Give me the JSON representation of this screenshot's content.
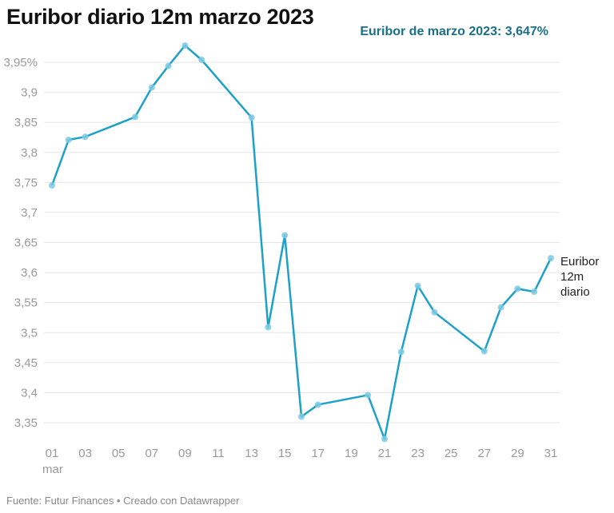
{
  "header": {
    "title": "Euribor diario 12m marzo 2023",
    "note": "Euribor de marzo 2023: 3,647%"
  },
  "footer": {
    "source": "Fuente: Futur Finances • Creado con Datawrapper"
  },
  "chart_data": {
    "type": "line",
    "title": "Euribor diario 12m marzo 2023",
    "xlabel": "",
    "ylabel": "",
    "x_ticks": [
      "01",
      "03",
      "05",
      "07",
      "09",
      "11",
      "13",
      "15",
      "17",
      "19",
      "21",
      "23",
      "25",
      "27",
      "29",
      "31"
    ],
    "x_sub_label": "mar",
    "y_ticks": [
      "3,95%",
      "3,9",
      "3,85",
      "3,8",
      "3,75",
      "3,7",
      "3,65",
      "3,6",
      "3,55",
      "3,5",
      "3,45",
      "3,4",
      "3,35"
    ],
    "ylim": [
      3.35,
      3.95
    ],
    "xlim": [
      1,
      31
    ],
    "grid": true,
    "color": "#1ea1c8",
    "series": [
      {
        "name": "Euribor 12m diario",
        "x": [
          1,
          2,
          3,
          6,
          7,
          8,
          9,
          10,
          13,
          14,
          15,
          16,
          17,
          20,
          21,
          22,
          23,
          24,
          27,
          28,
          29,
          30,
          31
        ],
        "values": [
          3.745,
          3.821,
          3.826,
          3.859,
          3.908,
          3.944,
          3.978,
          3.954,
          3.858,
          3.509,
          3.662,
          3.36,
          3.38,
          3.396,
          3.323,
          3.468,
          3.578,
          3.534,
          3.469,
          3.542,
          3.573,
          3.568,
          3.624
        ]
      }
    ],
    "series_label_lines": [
      "Euribor",
      "12m",
      "diario"
    ]
  }
}
